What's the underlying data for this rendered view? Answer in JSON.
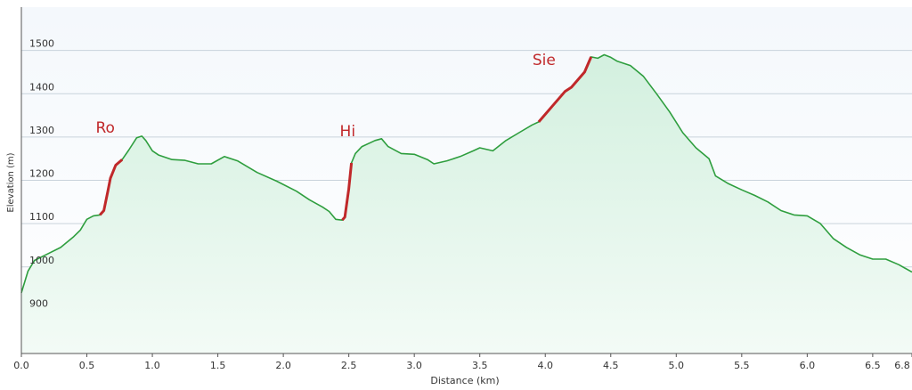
{
  "chart_data": {
    "type": "area",
    "x_label": "Distance  (km)",
    "y_label": "Elevation (m)",
    "x": [
      0,
      0.05,
      0.1,
      0.2,
      0.3,
      0.4,
      0.45,
      0.5,
      0.55,
      0.6,
      0.63,
      0.66,
      0.68,
      0.72,
      0.77,
      0.82,
      0.88,
      0.92,
      0.95,
      1.0,
      1.05,
      1.15,
      1.25,
      1.35,
      1.45,
      1.55,
      1.65,
      1.8,
      1.95,
      2.1,
      2.2,
      2.3,
      2.35,
      2.4,
      2.45,
      2.47,
      2.5,
      2.52,
      2.55,
      2.6,
      2.7,
      2.75,
      2.8,
      2.9,
      3.0,
      3.1,
      3.15,
      3.25,
      3.35,
      3.45,
      3.5,
      3.6,
      3.7,
      3.8,
      3.9,
      3.95,
      4.05,
      4.15,
      4.2,
      4.3,
      4.35,
      4.4,
      4.45,
      4.5,
      4.55,
      4.65,
      4.75,
      4.85,
      4.95,
      5.05,
      5.15,
      5.25,
      5.3,
      5.4,
      5.5,
      5.6,
      5.7,
      5.8,
      5.9,
      6.0,
      6.1,
      6.2,
      6.3,
      6.4,
      6.5,
      6.6,
      6.7,
      6.8
    ],
    "series": [
      {
        "color": "#2e9e3e",
        "values": [
          940,
          990,
          1015,
          1030,
          1045,
          1070,
          1085,
          1110,
          1118,
          1120,
          1130,
          1175,
          1205,
          1235,
          1248,
          1270,
          1298,
          1302,
          1292,
          1268,
          1258,
          1248,
          1246,
          1238,
          1238,
          1255,
          1245,
          1218,
          1198,
          1175,
          1155,
          1138,
          1128,
          1110,
          1108,
          1115,
          1180,
          1240,
          1262,
          1278,
          1292,
          1296,
          1278,
          1262,
          1260,
          1248,
          1238,
          1245,
          1255,
          1268,
          1275,
          1268,
          1292,
          1310,
          1328,
          1335,
          1370,
          1405,
          1415,
          1450,
          1485,
          1482,
          1490,
          1484,
          1475,
          1465,
          1440,
          1400,
          1358,
          1310,
          1275,
          1250,
          1210,
          1192,
          1178,
          1165,
          1150,
          1130,
          1120,
          1118,
          1100,
          1065,
          1045,
          1028,
          1018,
          1018,
          1005,
          988
        ]
      },
      {
        "color": "#c0282a",
        "values": [
          null,
          null,
          null,
          null,
          null,
          null,
          null,
          null,
          null,
          1120,
          1130,
          1175,
          1205,
          1235,
          1248,
          null,
          null,
          null,
          null,
          null,
          null,
          null,
          null,
          null,
          null,
          null,
          null,
          null,
          null,
          null,
          null,
          null,
          null,
          null,
          1108,
          1115,
          1180,
          1240,
          null,
          null,
          null,
          null,
          null,
          null,
          null,
          null,
          null,
          null,
          null,
          null,
          null,
          null,
          null,
          null,
          null,
          1335,
          1370,
          1405,
          1415,
          1450,
          1485,
          null,
          null,
          null,
          null,
          null,
          null,
          null,
          null,
          null,
          null,
          null,
          null,
          null,
          null,
          null,
          null,
          null,
          null,
          null,
          null,
          null,
          null,
          null,
          null,
          null,
          null,
          null
        ]
      }
    ],
    "annotations": [
      "Ro",
      "Hi",
      "Sie"
    ],
    "xlim": [
      0,
      6.8
    ],
    "ylim": [
      800,
      1600
    ],
    "xticks": [
      {
        "value": 0,
        "label": "0.0"
      },
      0.5,
      {
        "value": 1,
        "label": "1.0"
      },
      1.5,
      {
        "value": 2,
        "label": "2.0"
      },
      2.5,
      {
        "value": 3,
        "label": "3.0"
      },
      3.5,
      {
        "value": 4,
        "label": "4.0"
      },
      4.5,
      {
        "value": 5,
        "label": "5.0"
      },
      5.5,
      {
        "value": 6,
        "label": "6.0"
      },
      6.5,
      6.8
    ],
    "yticks": [
      900,
      1000,
      1100,
      1200,
      1300,
      1400,
      1500
    ],
    "grid": true
  }
}
